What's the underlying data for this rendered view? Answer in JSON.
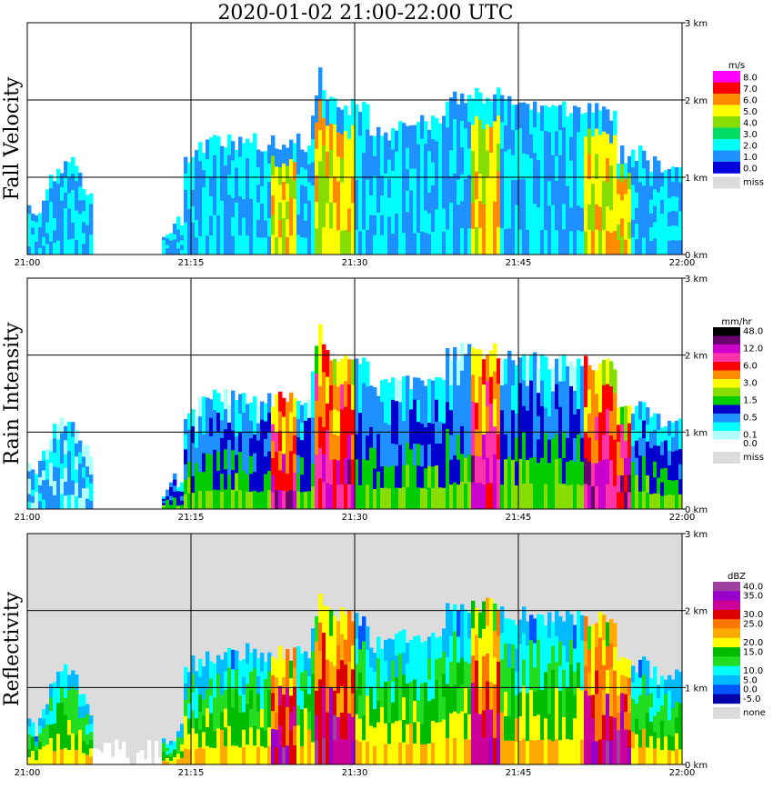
{
  "title": "2020-01-02   21:00-22:00 UTC",
  "chart_data": [
    {
      "type": "heatmap",
      "name": "fall-velocity",
      "ylabel": "Fall Velocity",
      "units": "m/s",
      "xticks": [
        "21:00",
        "21:15",
        "21:30",
        "21:45",
        "22:00"
      ],
      "yticks": [
        "0 km",
        "1 km",
        "2 km",
        "3 km"
      ],
      "ylim": [
        0,
        3.0
      ],
      "legend": [
        {
          "label": "8.0",
          "color": "#ff00ff"
        },
        {
          "label": "7.0",
          "color": "#ff0000"
        },
        {
          "label": "6.0",
          "color": "#ff8c00"
        },
        {
          "label": "5.0",
          "color": "#ffff00"
        },
        {
          "label": "4.0",
          "color": "#88dd00"
        },
        {
          "label": "3.0",
          "color": "#00dd66"
        },
        {
          "label": "2.0",
          "color": "#00ffff"
        },
        {
          "label": "1.0",
          "color": "#1e90ff"
        },
        {
          "label": "0.0",
          "color": "#0000dd"
        }
      ],
      "missing_label": "miss"
    },
    {
      "type": "heatmap",
      "name": "rain-intensity",
      "ylabel": "Rain Intensity",
      "units": "mm/hr",
      "xticks": [
        "21:00",
        "21:15",
        "21:30",
        "21:45",
        "22:00"
      ],
      "yticks": [
        "0 km",
        "1 km",
        "2 km",
        "3 km"
      ],
      "ylim": [
        0,
        3.0
      ],
      "legend": [
        {
          "label": "48.0",
          "color": "#000000"
        },
        {
          "label": "",
          "color": "#6a0070"
        },
        {
          "label": "12.0",
          "color": "#cc00cc"
        },
        {
          "label": "",
          "color": "#ff33aa"
        },
        {
          "label": "6.0",
          "color": "#ff0000"
        },
        {
          "label": "",
          "color": "#ff8c00"
        },
        {
          "label": "3.0",
          "color": "#ffff00"
        },
        {
          "label": "",
          "color": "#88dd00"
        },
        {
          "label": "1.5",
          "color": "#00cc00"
        },
        {
          "label": "",
          "color": "#0000cc"
        },
        {
          "label": "0.5",
          "color": "#1e90ff"
        },
        {
          "label": "",
          "color": "#00ffff"
        },
        {
          "label": "0.1",
          "color": "#b0ffff"
        },
        {
          "label": "0.0",
          "color": "#ffffff"
        }
      ],
      "missing_label": "miss"
    },
    {
      "type": "heatmap",
      "name": "reflectivity",
      "ylabel": "Reflectivity",
      "units": "dBZ",
      "xticks": [
        "21:00",
        "21:15",
        "21:30",
        "21:45",
        "22:00"
      ],
      "yticks": [
        "0 km",
        "1 km",
        "2 km",
        "3 km"
      ],
      "ylim": [
        0,
        3.0
      ],
      "legend": [
        {
          "label": "40.0",
          "color": "#a040a0"
        },
        {
          "label": "35.0",
          "color": "#9900cc"
        },
        {
          "label": "",
          "color": "#cc0099"
        },
        {
          "label": "30.0",
          "color": "#dd0000"
        },
        {
          "label": "25.0",
          "color": "#ff7700"
        },
        {
          "label": "",
          "color": "#ffaa00"
        },
        {
          "label": "20.0",
          "color": "#ffff00"
        },
        {
          "label": "15.0",
          "color": "#00bb00"
        },
        {
          "label": "",
          "color": "#22dd22"
        },
        {
          "label": "10.0",
          "color": "#00ffff"
        },
        {
          "label": "5.0",
          "color": "#00bbff"
        },
        {
          "label": "0.0",
          "color": "#0055ff"
        },
        {
          "label": "-5.0",
          "color": "#0000aa"
        }
      ],
      "missing_label": "none"
    }
  ]
}
